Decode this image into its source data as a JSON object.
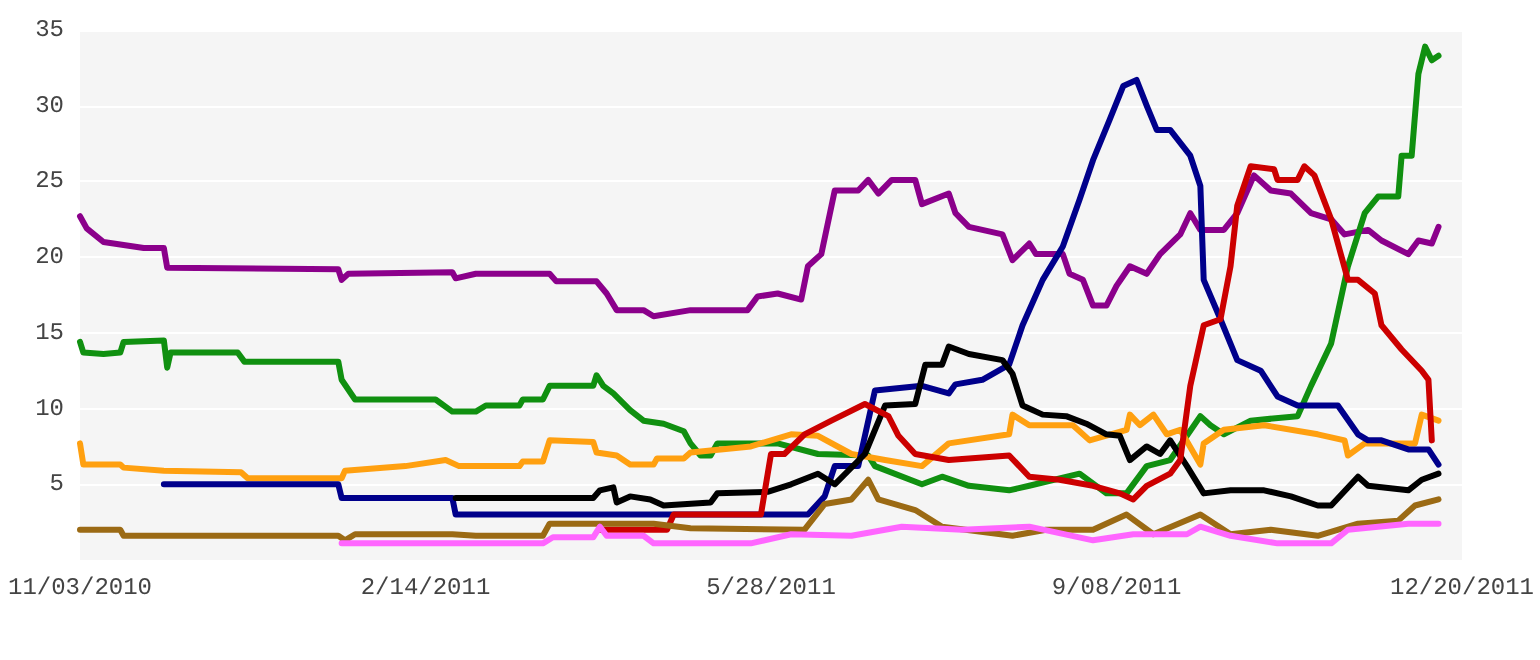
{
  "chart_data": {
    "type": "line",
    "xlim": [
      "2010-11-03",
      "2011-12-20"
    ],
    "xticks": [
      {
        "value": "2010-11-03",
        "label": "11/03/2010"
      },
      {
        "value": "2011-02-14",
        "label": "2/14/2011"
      },
      {
        "value": "2011-05-28",
        "label": "5/28/2011"
      },
      {
        "value": "2011-09-08",
        "label": "9/08/2011"
      },
      {
        "value": "2011-12-20",
        "label": "12/20/2011"
      }
    ],
    "ylim": [
      0,
      35
    ],
    "yticks": [
      5,
      10,
      15,
      20,
      25,
      30,
      35
    ],
    "grid": "y",
    "marker": "none",
    "line_style": "solid",
    "series": [
      {
        "color": "#8b008b",
        "x": [
          "2010-11-03",
          "2010-11-05",
          "2010-11-10",
          "2010-11-22",
          "2010-11-28",
          "2010-11-29",
          "2011-01-19",
          "2011-01-20",
          "2011-01-22",
          "2011-02-22",
          "2011-02-23",
          "2011-03-01",
          "2011-03-23",
          "2011-03-25",
          "2011-04-06",
          "2011-04-09",
          "2011-04-12",
          "2011-04-20",
          "2011-04-23",
          "2011-05-04",
          "2011-05-21",
          "2011-05-24",
          "2011-05-30",
          "2011-06-06",
          "2011-06-08",
          "2011-06-12",
          "2011-06-16",
          "2011-06-23",
          "2011-06-26",
          "2011-06-29",
          "2011-07-03",
          "2011-07-10",
          "2011-07-12",
          "2011-07-20",
          "2011-07-22",
          "2011-07-26",
          "2011-08-05",
          "2011-08-08",
          "2011-08-13",
          "2011-08-15",
          "2011-08-23",
          "2011-08-25",
          "2011-08-29",
          "2011-09-01",
          "2011-09-05",
          "2011-09-08",
          "2011-09-12",
          "2011-09-17",
          "2011-09-21",
          "2011-09-27",
          "2011-09-30",
          "2011-10-03",
          "2011-10-10",
          "2011-10-14",
          "2011-10-19",
          "2011-10-24",
          "2011-10-30",
          "2011-11-05",
          "2011-11-11",
          "2011-11-15",
          "2011-11-22",
          "2011-11-26",
          "2011-12-04",
          "2011-12-07",
          "2011-12-11",
          "2011-12-13"
        ],
        "values": [
          22.7,
          21.9,
          21.0,
          20.6,
          20.6,
          19.3,
          19.2,
          18.5,
          18.9,
          19.0,
          18.6,
          18.9,
          18.9,
          18.4,
          18.4,
          17.6,
          16.5,
          16.5,
          16.1,
          16.5,
          16.5,
          17.4,
          17.6,
          17.2,
          19.4,
          20.2,
          24.4,
          24.4,
          25.1,
          24.2,
          25.1,
          25.1,
          23.5,
          24.2,
          22.9,
          22.0,
          21.5,
          19.8,
          20.9,
          20.2,
          20.2,
          18.9,
          18.5,
          16.8,
          16.8,
          18.1,
          19.4,
          18.9,
          20.2,
          21.5,
          22.9,
          21.8,
          21.8,
          22.9,
          25.4,
          24.4,
          24.2,
          22.9,
          22.5,
          21.5,
          21.8,
          21.1,
          20.2,
          21.1,
          20.9,
          22.0
        ]
      },
      {
        "color": "#109010",
        "x": [
          "2010-11-03",
          "2010-11-04",
          "2010-11-10",
          "2010-11-15",
          "2010-11-16",
          "2010-11-28",
          "2010-11-29",
          "2010-11-30",
          "2010-12-20",
          "2010-12-22",
          "2011-01-19",
          "2011-01-20",
          "2011-01-24",
          "2011-02-05",
          "2011-02-17",
          "2011-02-22",
          "2011-03-01",
          "2011-03-04",
          "2011-03-14",
          "2011-03-15",
          "2011-03-21",
          "2011-03-23",
          "2011-04-05",
          "2011-04-06",
          "2011-04-08",
          "2011-04-11",
          "2011-04-16",
          "2011-04-20",
          "2011-04-26",
          "2011-05-02",
          "2011-05-04",
          "2011-05-07",
          "2011-05-10",
          "2011-05-12",
          "2011-05-30",
          "2011-06-11",
          "2011-06-26",
          "2011-06-28",
          "2011-07-12",
          "2011-07-18",
          "2011-07-26",
          "2011-08-07",
          "2011-08-13",
          "2011-08-28",
          "2011-09-05",
          "2011-09-11",
          "2011-09-17",
          "2011-09-24",
          "2011-10-03",
          "2011-10-06",
          "2011-10-10",
          "2011-10-18",
          "2011-11-01",
          "2011-11-05",
          "2011-11-11",
          "2011-11-16",
          "2011-11-21",
          "2011-11-25",
          "2011-12-01",
          "2011-12-02",
          "2011-12-05",
          "2011-12-07",
          "2011-12-09",
          "2011-12-11",
          "2011-12-13"
        ],
        "values": [
          14.4,
          13.7,
          13.6,
          13.7,
          14.4,
          14.5,
          12.7,
          13.7,
          13.7,
          13.1,
          13.1,
          11.9,
          10.6,
          10.6,
          10.6,
          9.8,
          9.8,
          10.2,
          10.2,
          10.6,
          10.6,
          11.5,
          11.5,
          12.2,
          11.5,
          11.0,
          9.9,
          9.2,
          9.0,
          8.5,
          7.7,
          6.9,
          6.9,
          7.7,
          7.7,
          7.0,
          6.9,
          6.2,
          5.0,
          5.5,
          4.9,
          4.6,
          4.9,
          5.7,
          4.4,
          4.4,
          6.2,
          6.6,
          9.5,
          8.9,
          8.3,
          9.2,
          9.5,
          11.5,
          14.3,
          19.4,
          22.9,
          24.0,
          24.0,
          26.7,
          26.7,
          32.1,
          33.9,
          33.0,
          33.3
        ]
      },
      {
        "color": "#ffa010",
        "x": [
          "2010-11-03",
          "2010-11-04",
          "2010-11-15",
          "2010-11-16",
          "2010-11-28",
          "2010-12-21",
          "2010-12-23",
          "2011-01-20",
          "2011-01-21",
          "2011-02-08",
          "2011-02-20",
          "2011-02-24",
          "2011-03-14",
          "2011-03-15",
          "2011-03-21",
          "2011-03-23",
          "2011-04-05",
          "2011-04-06",
          "2011-04-12",
          "2011-04-16",
          "2011-04-23",
          "2011-04-24",
          "2011-05-02",
          "2011-05-04",
          "2011-05-22",
          "2011-06-03",
          "2011-06-11",
          "2011-06-21",
          "2011-07-01",
          "2011-07-12",
          "2011-07-20",
          "2011-08-07",
          "2011-08-08",
          "2011-08-13",
          "2011-08-26",
          "2011-08-31",
          "2011-09-11",
          "2011-09-12",
          "2011-09-15",
          "2011-09-19",
          "2011-09-23",
          "2011-09-27",
          "2011-10-03",
          "2011-10-04",
          "2011-10-10",
          "2011-10-22",
          "2011-11-07",
          "2011-11-15",
          "2011-11-16",
          "2011-11-21",
          "2011-12-06",
          "2011-12-08",
          "2011-12-13"
        ],
        "values": [
          7.7,
          6.3,
          6.3,
          6.1,
          5.9,
          5.8,
          5.4,
          5.4,
          5.9,
          6.2,
          6.6,
          6.2,
          6.2,
          6.5,
          6.5,
          7.9,
          7.8,
          7.1,
          6.9,
          6.3,
          6.3,
          6.7,
          6.7,
          7.1,
          7.5,
          8.3,
          8.2,
          7.0,
          6.6,
          6.2,
          7.7,
          8.3,
          9.6,
          8.9,
          8.9,
          7.9,
          8.6,
          9.6,
          8.9,
          9.6,
          8.3,
          8.6,
          6.3,
          7.7,
          8.6,
          8.9,
          8.3,
          7.9,
          6.9,
          7.7,
          7.7,
          9.6,
          9.2
        ]
      },
      {
        "color": "#00008b",
        "x": [
          "2010-11-28",
          "2011-01-19",
          "2011-01-20",
          "2011-02-22",
          "2011-02-23",
          "2011-06-08",
          "2011-06-13",
          "2011-06-16",
          "2011-06-23",
          "2011-06-28",
          "2011-07-12",
          "2011-07-20",
          "2011-07-22",
          "2011-07-30",
          "2011-08-07",
          "2011-08-11",
          "2011-08-17",
          "2011-08-23",
          "2011-08-28",
          "2011-09-01",
          "2011-09-06",
          "2011-09-10",
          "2011-09-14",
          "2011-09-17",
          "2011-09-20",
          "2011-09-24",
          "2011-09-30",
          "2011-10-03",
          "2011-10-04",
          "2011-10-09",
          "2011-10-14",
          "2011-10-21",
          "2011-10-26",
          "2011-11-01",
          "2011-11-13",
          "2011-11-19",
          "2011-11-22",
          "2011-11-26",
          "2011-12-04",
          "2011-12-10",
          "2011-12-13"
        ],
        "values": [
          5.0,
          5.0,
          4.1,
          4.1,
          3.0,
          3.0,
          4.2,
          6.2,
          6.2,
          11.2,
          11.5,
          11.0,
          11.6,
          11.9,
          12.9,
          15.5,
          18.5,
          20.7,
          23.8,
          26.4,
          29.1,
          31.3,
          31.7,
          30.0,
          28.4,
          28.4,
          26.7,
          24.7,
          18.5,
          15.9,
          13.2,
          12.5,
          10.8,
          10.2,
          10.2,
          8.3,
          7.9,
          7.9,
          7.3,
          7.3,
          6.3
        ]
      },
      {
        "color": "#000000",
        "x": [
          "2011-02-23",
          "2011-04-05",
          "2011-04-07",
          "2011-04-11",
          "2011-04-12",
          "2011-04-16",
          "2011-04-22",
          "2011-04-26",
          "2011-05-10",
          "2011-05-12",
          "2011-05-27",
          "2011-06-03",
          "2011-06-11",
          "2011-06-16",
          "2011-06-25",
          "2011-07-01",
          "2011-07-10",
          "2011-07-13",
          "2011-07-18",
          "2011-07-20",
          "2011-07-26",
          "2011-08-05",
          "2011-08-08",
          "2011-08-11",
          "2011-08-17",
          "2011-08-24",
          "2011-08-30",
          "2011-09-05",
          "2011-09-09",
          "2011-09-12",
          "2011-09-17",
          "2011-09-21",
          "2011-09-24",
          "2011-09-29",
          "2011-10-04",
          "2011-10-12",
          "2011-10-22",
          "2011-10-30",
          "2011-11-07",
          "2011-11-11",
          "2011-11-19",
          "2011-11-22",
          "2011-12-04",
          "2011-12-08",
          "2011-12-13"
        ],
        "values": [
          4.1,
          4.1,
          4.6,
          4.8,
          3.8,
          4.2,
          4.0,
          3.6,
          3.8,
          4.4,
          4.5,
          5.0,
          5.7,
          5.0,
          7.0,
          10.2,
          10.3,
          12.9,
          12.9,
          14.1,
          13.6,
          13.2,
          12.3,
          10.2,
          9.6,
          9.5,
          9.0,
          8.3,
          8.2,
          6.6,
          7.5,
          7.0,
          7.9,
          6.2,
          4.4,
          4.6,
          4.6,
          4.2,
          3.6,
          3.6,
          5.5,
          4.9,
          4.6,
          5.3,
          5.7
        ]
      },
      {
        "color": "#cc0000",
        "x": [
          "2011-04-07",
          "2011-04-27",
          "2011-04-29",
          "2011-05-25",
          "2011-05-28",
          "2011-06-01",
          "2011-06-07",
          "2011-06-15",
          "2011-06-25",
          "2011-07-02",
          "2011-07-05",
          "2011-07-10",
          "2011-07-20",
          "2011-08-07",
          "2011-08-13",
          "2011-08-22",
          "2011-09-01",
          "2011-09-09",
          "2011-09-13",
          "2011-09-17",
          "2011-09-24",
          "2011-09-27",
          "2011-09-30",
          "2011-10-04",
          "2011-10-09",
          "2011-10-12",
          "2011-10-14",
          "2011-10-18",
          "2011-10-25",
          "2011-10-26",
          "2011-11-01",
          "2011-11-03",
          "2011-11-06",
          "2011-11-11",
          "2011-11-16",
          "2011-11-19",
          "2011-11-24",
          "2011-11-26",
          "2011-12-02",
          "2011-12-08",
          "2011-12-10",
          "2011-12-11"
        ],
        "values": [
          2.0,
          2.0,
          3.0,
          3.0,
          7.0,
          7.0,
          8.3,
          9.2,
          10.3,
          9.5,
          8.2,
          7.0,
          6.6,
          6.9,
          5.5,
          5.3,
          4.9,
          4.4,
          4.0,
          4.9,
          5.7,
          6.6,
          11.5,
          15.5,
          15.9,
          19.4,
          23.4,
          26.0,
          25.8,
          25.1,
          25.1,
          26.0,
          25.4,
          22.5,
          18.5,
          18.5,
          17.6,
          15.5,
          13.9,
          12.5,
          11.9,
          7.9
        ]
      },
      {
        "color": "#9b6a14",
        "x": [
          "2010-11-03",
          "2010-11-15",
          "2010-11-16",
          "2011-01-19",
          "2011-01-21",
          "2011-01-24",
          "2011-02-22",
          "2011-03-01",
          "2011-03-21",
          "2011-03-23",
          "2011-04-23",
          "2011-05-04",
          "2011-06-07",
          "2011-06-13",
          "2011-06-21",
          "2011-06-26",
          "2011-06-29",
          "2011-07-10",
          "2011-07-18",
          "2011-08-08",
          "2011-08-18",
          "2011-09-01",
          "2011-09-11",
          "2011-09-19",
          "2011-10-03",
          "2011-10-12",
          "2011-10-24",
          "2011-11-07",
          "2011-11-19",
          "2011-12-01",
          "2011-12-06",
          "2011-12-13"
        ],
        "values": [
          2.0,
          2.0,
          1.6,
          1.6,
          1.3,
          1.7,
          1.7,
          1.6,
          1.6,
          2.4,
          2.4,
          2.1,
          2.0,
          3.7,
          4.0,
          5.3,
          4.0,
          3.3,
          2.2,
          1.6,
          2.0,
          2.0,
          3.0,
          1.7,
          3.0,
          1.7,
          2.0,
          1.6,
          2.4,
          2.6,
          3.6,
          4.0
        ]
      },
      {
        "color": "#ff66ff",
        "x": [
          "2011-01-20",
          "2011-03-21",
          "2011-03-24",
          "2011-04-05",
          "2011-04-07",
          "2011-04-09",
          "2011-04-20",
          "2011-04-23",
          "2011-05-22",
          "2011-06-03",
          "2011-06-21",
          "2011-07-06",
          "2011-07-24",
          "2011-08-13",
          "2011-09-01",
          "2011-09-13",
          "2011-09-29",
          "2011-10-03",
          "2011-10-12",
          "2011-10-26",
          "2011-11-11",
          "2011-11-16",
          "2011-12-04",
          "2011-12-13"
        ],
        "values": [
          1.1,
          1.1,
          1.5,
          1.5,
          2.2,
          1.6,
          1.6,
          1.1,
          1.1,
          1.7,
          1.6,
          2.2,
          2.0,
          2.2,
          1.3,
          1.7,
          1.7,
          2.2,
          1.6,
          1.1,
          1.1,
          2.0,
          2.4,
          2.4
        ]
      }
    ]
  }
}
